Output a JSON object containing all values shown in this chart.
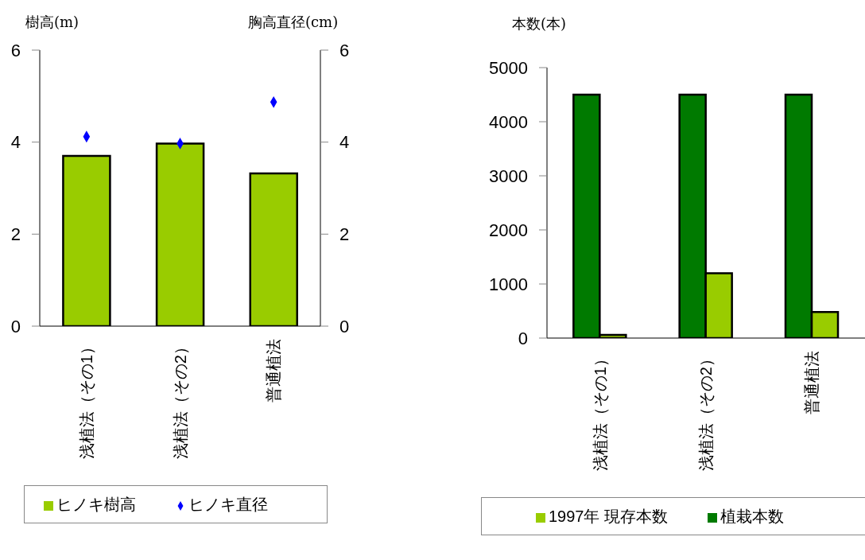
{
  "chart_data": [
    {
      "type": "bar",
      "categories": [
        "浅植法（その1）",
        "浅植法（その2）",
        "普通植法"
      ],
      "ylabel": "樹高(m)",
      "y2label": "胸高直径(cm)",
      "ylim": [
        0,
        6
      ],
      "yticks": [
        0,
        2,
        4,
        6
      ],
      "y2lim": [
        0,
        6
      ],
      "y2ticks": [
        0,
        2,
        4,
        6
      ],
      "marker": "diamond",
      "legend": "bottom",
      "series": [
        {
          "name": "ヒノキ樹高",
          "color": "#99cc00",
          "values": [
            3.7,
            3.97,
            3.32
          ]
        },
        {
          "name": "ヒノキ直径",
          "type": "scatter",
          "axis": "y2",
          "color": "#0000ff",
          "values": [
            4.12,
            3.97,
            4.87
          ]
        }
      ]
    },
    {
      "type": "bar",
      "categories": [
        "浅植法（その1）",
        "浅植法（その2）",
        "普通植法"
      ],
      "ylabel": "本数(本)",
      "ylim": [
        0,
        5000
      ],
      "yticks": [
        0,
        1000,
        2000,
        3000,
        4000,
        5000
      ],
      "legend": "bottom",
      "series": [
        {
          "name": "植栽本数",
          "color": "#007a00",
          "values": [
            4500,
            4500,
            4500
          ]
        },
        {
          "name": "1997年 現存本数",
          "color": "#99cc00",
          "values": [
            60,
            1200,
            480
          ]
        }
      ]
    }
  ]
}
